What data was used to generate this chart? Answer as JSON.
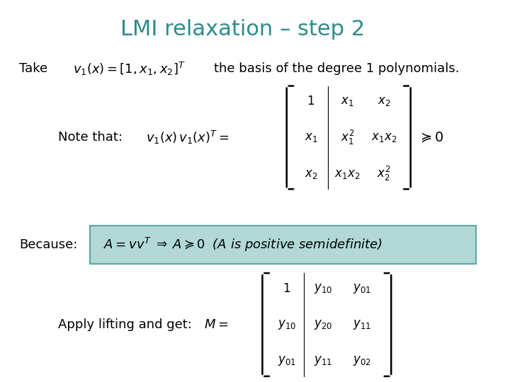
{
  "title": "LMI relaxation – step 2",
  "title_color": "#2E8B8B",
  "title_fontsize": 22,
  "bg_color": "#ffffff",
  "box_color": "#B2D8D8",
  "box_edge_color": "#5BA8A8",
  "text_color": "#000000",
  "take_text": "Take",
  "take_formula": "$v_1(x) = [1, x_1, x_2]^T$",
  "take_suffix": "   the basis of the degree 1 polynomials.",
  "note_label": "Note that:",
  "note_formula_lhs": "$v_1(x)v_1(x)^T = $",
  "matrix1": [
    [
      "$1$",
      "$x_1$",
      "$x_2$"
    ],
    [
      "$x_1$",
      "$x_1^2$",
      "$x_1 x_2$"
    ],
    [
      "$x_2$",
      "$x_1 x_2$",
      "$x_2^2$"
    ]
  ],
  "note_suffix": "$\\succcurlyeq 0$",
  "because_label": "Because:",
  "because_formula": "$A = vv^T \\;\\Rightarrow\\; A\\succcurlyeq 0 \\;$ ($A$ is positive semidefinite)",
  "apply_label": "Apply lifting and get:",
  "apply_formula_lhs": "$M = $",
  "matrix2": [
    [
      "$1$",
      "$y_{10}$",
      "$y_{01}$"
    ],
    [
      "$y_{10}$",
      "$y_{20}$",
      "$y_{11}$"
    ],
    [
      "$y_{01}$",
      "$y_{11}$",
      "$y_{02}$"
    ]
  ]
}
